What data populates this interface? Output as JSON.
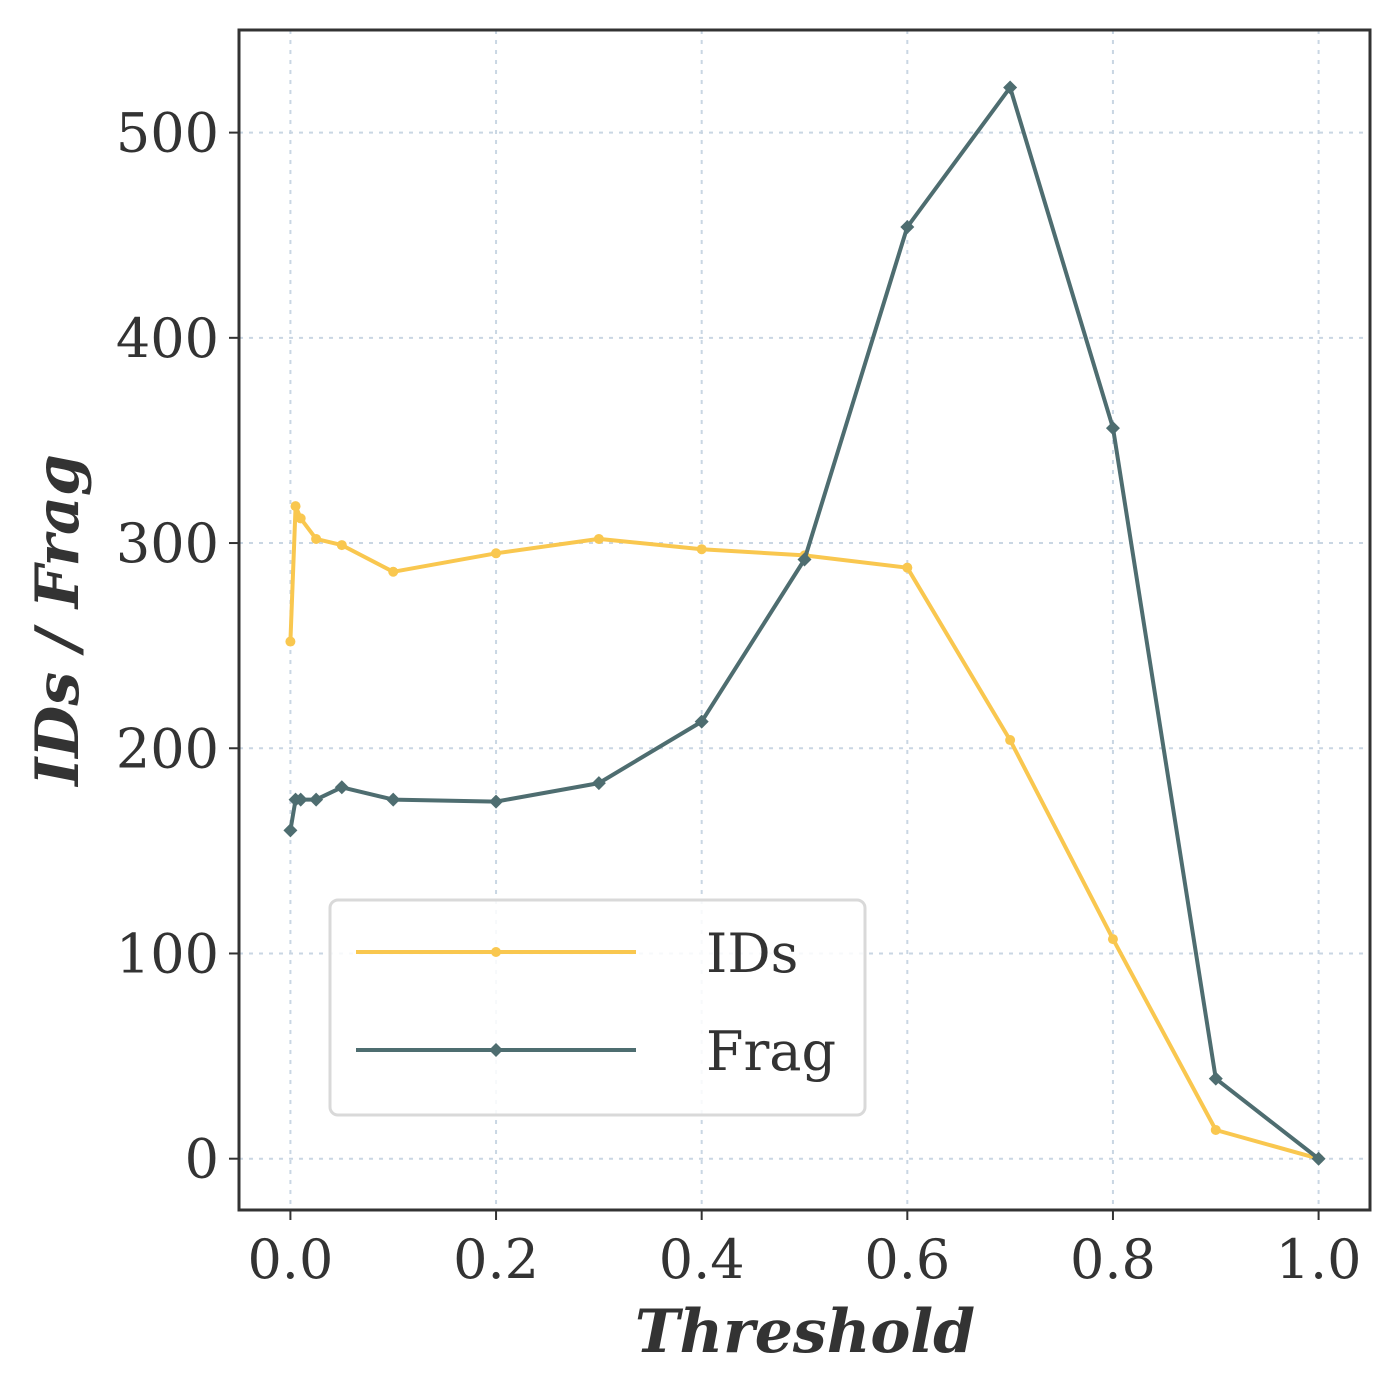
{
  "chart_data": {
    "type": "line",
    "title": "",
    "xlabel": "Threshold",
    "ylabel": "IDs / Frag",
    "xlim": [
      -0.05,
      1.05
    ],
    "ylim": [
      -25,
      550
    ],
    "xticks": [
      0.0,
      0.2,
      0.4,
      0.6,
      0.8,
      1.0
    ],
    "xtick_labels": [
      "0.0",
      "0.2",
      "0.4",
      "0.6",
      "0.8",
      "1.0"
    ],
    "yticks": [
      0,
      100,
      200,
      300,
      400,
      500
    ],
    "ytick_labels": [
      "0",
      "100",
      "200",
      "300",
      "400",
      "500"
    ],
    "grid": true,
    "legend_position": "lower-left",
    "series": [
      {
        "name": "IDs",
        "color": "#f9c74f",
        "marker": "circle",
        "x": [
          0.0,
          0.005,
          0.01,
          0.025,
          0.05,
          0.1,
          0.2,
          0.3,
          0.4,
          0.5,
          0.6,
          0.7,
          0.8,
          0.9,
          1.0
        ],
        "values": [
          252,
          318,
          312,
          302,
          299,
          286,
          295,
          302,
          297,
          294,
          288,
          204,
          107,
          14,
          0
        ]
      },
      {
        "name": "Frag",
        "color": "#4e6d70",
        "marker": "diamond",
        "x": [
          0.0,
          0.005,
          0.01,
          0.025,
          0.05,
          0.1,
          0.2,
          0.3,
          0.4,
          0.5,
          0.6,
          0.7,
          0.8,
          0.9,
          1.0
        ],
        "values": [
          160,
          175,
          175,
          175,
          181,
          175,
          174,
          183,
          213,
          292,
          454,
          522,
          356,
          39,
          0
        ]
      }
    ]
  }
}
